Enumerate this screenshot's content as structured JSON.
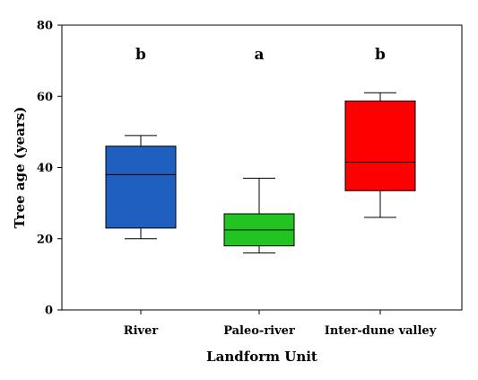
{
  "chart_data": {
    "type": "box",
    "xlabel": "Landform Unit",
    "ylabel": "Tree age (years)",
    "ylim": [
      0,
      80
    ],
    "yticks": [
      "0",
      "20",
      "40",
      "60",
      "80"
    ],
    "grid": false,
    "categories": [
      "River",
      "Paleo-river",
      "Inter-dune valley"
    ],
    "boxes": [
      {
        "category": "River",
        "min": 20,
        "q1": 23,
        "median": 38,
        "q3": 46,
        "max": 49,
        "color": "#1f5fbf",
        "letter": "b"
      },
      {
        "category": "Paleo-river",
        "min": 16,
        "q1": 18,
        "median": 22.5,
        "q3": 27,
        "max": 37,
        "color": "#22c422",
        "letter": "a"
      },
      {
        "category": "Inter-dune valley",
        "min": 26,
        "q1": 33.5,
        "median": 41.5,
        "q3": 58.7,
        "max": 61,
        "color": "#ff0000",
        "letter": "b"
      }
    ]
  }
}
